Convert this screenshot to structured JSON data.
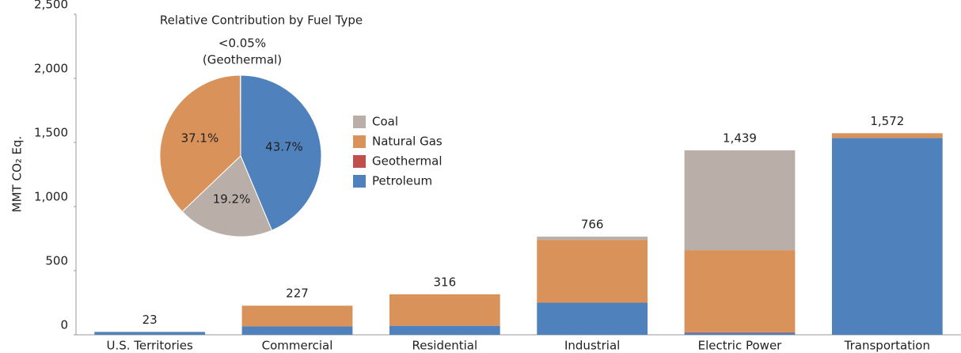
{
  "chart_data": [
    {
      "type": "bar",
      "stacked": true,
      "ylabel": "MMT CO₂ Eq.",
      "categories": [
        "U.S. Territories",
        "Commercial",
        "Residential",
        "Industrial",
        "Electric Power",
        "Transportation"
      ],
      "series": [
        {
          "name": "Petroleum",
          "color": "#4f81bd",
          "values": [
            22,
            65,
            70,
            250,
            15,
            1535
          ]
        },
        {
          "name": "Geothermal",
          "color": "#c0504d",
          "values": [
            0,
            0,
            0,
            0,
            4,
            0
          ]
        },
        {
          "name": "Natural Gas",
          "color": "#d8925a",
          "values": [
            1,
            162,
            246,
            490,
            641,
            37
          ]
        },
        {
          "name": "Coal",
          "color": "#b9aea8",
          "values": [
            0,
            0,
            0,
            26,
            779,
            0
          ]
        }
      ],
      "legend_order": [
        3,
        2,
        1,
        0
      ],
      "totals": [
        23,
        227,
        316,
        766,
        1439,
        1572
      ],
      "total_labels": [
        "23",
        "227",
        "316",
        "766",
        "1,439",
        "1,572"
      ],
      "ylim": [
        0,
        2500
      ],
      "yticks": [
        0,
        500,
        {
          "value": 1000,
          "label": "1,000"
        },
        {
          "value": 1500,
          "label": "1,500"
        },
        {
          "value": 2000,
          "label": "2,000"
        },
        {
          "value": 2500,
          "label": "2,500"
        }
      ],
      "grid": false
    },
    {
      "type": "pie",
      "title": "Relative Contribution by Fuel Type",
      "categories": [
        "Petroleum",
        "Coal",
        "Natural Gas",
        "Geothermal"
      ],
      "values": [
        43.7,
        19.2,
        37.1,
        0.04
      ],
      "value_labels": [
        "43.7%",
        "19.2%",
        "37.1%",
        "<0.05%"
      ],
      "annotation": "(Geothermal)"
    }
  ]
}
